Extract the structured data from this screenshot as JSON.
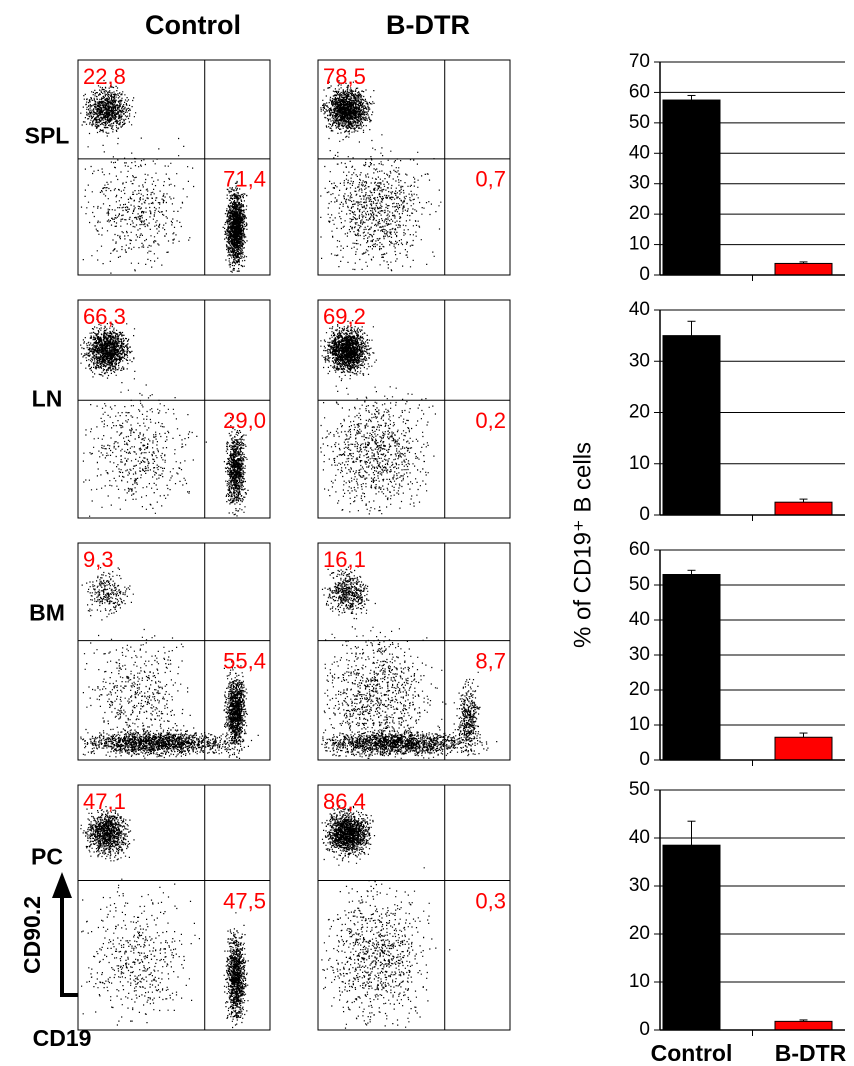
{
  "column_headers": [
    "Control",
    "B-DTR"
  ],
  "flow_plots": [
    {
      "row_label": "SPL",
      "panels": [
        {
          "upper_left": "22,8",
          "lower_right": "71,4"
        },
        {
          "upper_left": "78,5",
          "lower_right": "0,7"
        }
      ]
    },
    {
      "row_label": "LN",
      "panels": [
        {
          "upper_left": "66,3",
          "lower_right": "29,0"
        },
        {
          "upper_left": "69,2",
          "lower_right": "0,2"
        }
      ]
    },
    {
      "row_label": "BM",
      "panels": [
        {
          "upper_left": "9,3",
          "lower_right": "55,4"
        },
        {
          "upper_left": "16,1",
          "lower_right": "8,7"
        }
      ]
    },
    {
      "row_label": "PC",
      "panels": [
        {
          "upper_left": "47,1",
          "lower_right": "47,5"
        },
        {
          "upper_left": "86,4",
          "lower_right": "0,3"
        }
      ]
    }
  ],
  "axis_labels": {
    "y": "CD90.2",
    "x": "CD19"
  },
  "bar_y_label": "% of CD19⁺ B cells",
  "chart_data": [
    {
      "type": "bar",
      "categories": [
        null,
        null
      ],
      "values": [
        57.5,
        3.8
      ],
      "errors": [
        1.5,
        0.5
      ],
      "colors": [
        "#000000",
        "#ff0000"
      ],
      "ylim": [
        0,
        70
      ],
      "yticks": [
        0,
        10,
        20,
        30,
        40,
        50,
        60,
        70
      ],
      "grid": true
    },
    {
      "type": "bar",
      "categories": [
        null,
        null
      ],
      "values": [
        35,
        2.5
      ],
      "errors": [
        2.8,
        0.6
      ],
      "colors": [
        "#000000",
        "#ff0000"
      ],
      "ylim": [
        0,
        40
      ],
      "yticks": [
        0,
        10,
        20,
        30,
        40
      ],
      "grid": true
    },
    {
      "type": "bar",
      "categories": [
        null,
        null
      ],
      "values": [
        53,
        6.5
      ],
      "errors": [
        1.2,
        1.2
      ],
      "colors": [
        "#000000",
        "#ff0000"
      ],
      "ylim": [
        0,
        60
      ],
      "yticks": [
        0,
        10,
        20,
        30,
        40,
        50,
        60
      ],
      "grid": true
    },
    {
      "type": "bar",
      "categories": [
        "Control",
        "B-DTR"
      ],
      "values": [
        38.5,
        1.8
      ],
      "errors": [
        5,
        0.3
      ],
      "colors": [
        "#000000",
        "#ff0000"
      ],
      "ylim": [
        0,
        50
      ],
      "yticks": [
        0,
        10,
        20,
        30,
        40,
        50
      ],
      "grid": true
    }
  ]
}
